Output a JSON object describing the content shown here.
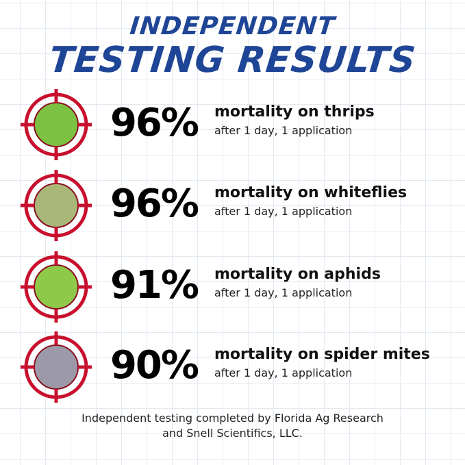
{
  "title": {
    "line1": "INDEPENDENT",
    "line2": "TESTING RESULTS"
  },
  "colors": {
    "title": "#1f4596",
    "target": "#c8102e"
  },
  "results": [
    {
      "percent": "96%",
      "label": "mortality on thrips",
      "sub": "after 1 day, 1 application",
      "image_color": "#7cc242",
      "icon": "thrips-target-icon"
    },
    {
      "percent": "96%",
      "label": "mortality on whiteflies",
      "sub": "after 1 day, 1 application",
      "image_color": "#a9b878",
      "icon": "whiteflies-target-icon"
    },
    {
      "percent": "91%",
      "label": "mortality on aphids",
      "sub": "after 1 day, 1 application",
      "image_color": "#8fc94a",
      "icon": "aphids-target-icon"
    },
    {
      "percent": "90%",
      "label": "mortality on spider mites",
      "sub": "after 1 day, 1 application",
      "image_color": "#9c9aa8",
      "icon": "spider-mites-target-icon"
    }
  ],
  "footer": {
    "line1": "Independent testing completed by Florida Ag Research",
    "line2": "and Snell Scientifics, LLC."
  }
}
